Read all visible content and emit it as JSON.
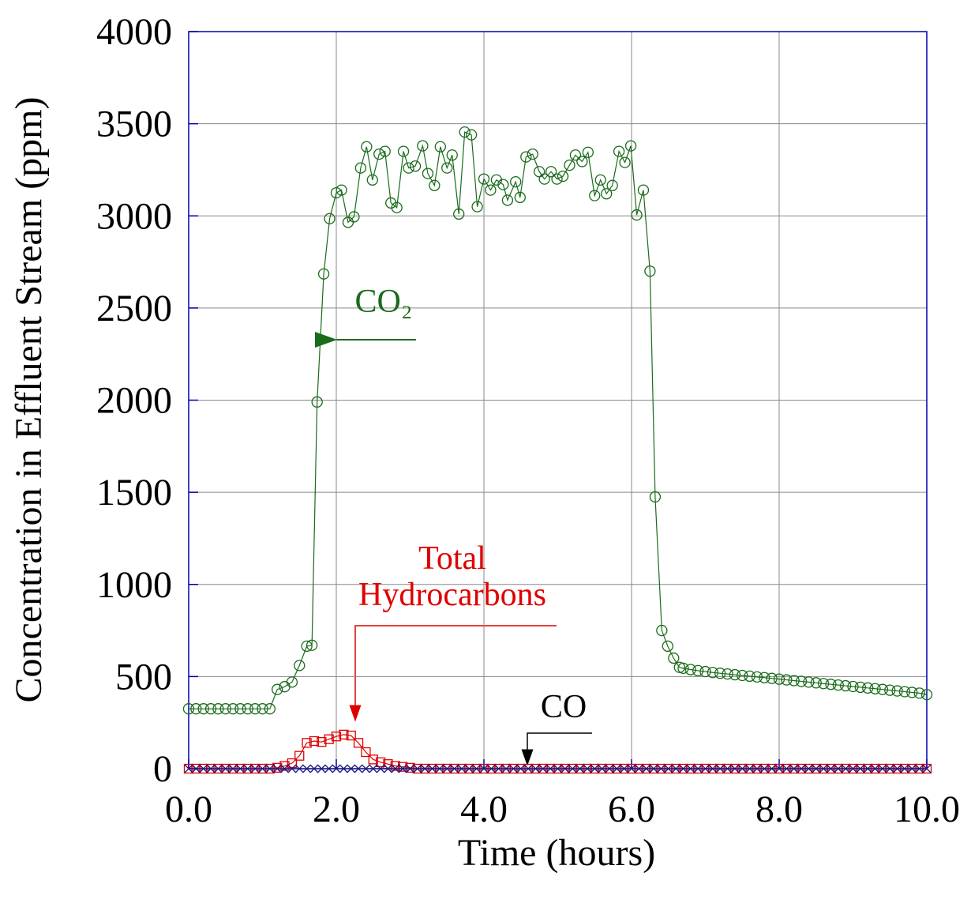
{
  "chart_data": {
    "type": "scatter",
    "x_label": "Time (hours)",
    "y_label": "Concentration in Effluent Stream (ppm)",
    "xlim": [
      0,
      10
    ],
    "ylim": [
      0,
      4000
    ],
    "xticks": [
      {
        "value": 0,
        "label": "0.0"
      },
      {
        "value": 2,
        "label": "2.0"
      },
      {
        "value": 4,
        "label": "4.0"
      },
      {
        "value": 6,
        "label": "6.0"
      },
      {
        "value": 8,
        "label": "8.0"
      },
      {
        "value": 10,
        "label": "10.0"
      }
    ],
    "yticks": [
      0,
      500,
      1000,
      1500,
      2000,
      2500,
      3000,
      3500,
      4000
    ],
    "grid": true,
    "annotations": [
      {
        "lines": [
          "CO₂"
        ],
        "color": "#1a6b1a"
      },
      {
        "lines": [
          "Total",
          "Hydrocarbons"
        ],
        "color": "#e00000"
      },
      {
        "lines": [
          "CO"
        ],
        "color": "#000000"
      }
    ],
    "series": [
      {
        "color": "#1a6b1a",
        "marker": "circle",
        "x": [
          0,
          0.1,
          0.2,
          0.3,
          0.4,
          0.5,
          0.6,
          0.7,
          0.8,
          0.9,
          1.0,
          1.1,
          1.2,
          1.3,
          1.4,
          1.5,
          1.6,
          1.67,
          1.74,
          1.83,
          1.91,
          2.0,
          2.07,
          2.16,
          2.24,
          2.33,
          2.41,
          2.49,
          2.58,
          2.66,
          2.74,
          2.82,
          2.91,
          2.98,
          3.07,
          3.17,
          3.24,
          3.33,
          3.41,
          3.5,
          3.57,
          3.66,
          3.74,
          3.83,
          3.91,
          4.0,
          4.09,
          4.17,
          4.26,
          4.32,
          4.43,
          4.49,
          4.57,
          4.66,
          4.75,
          4.82,
          4.91,
          4.99,
          5.07,
          5.16,
          5.24,
          5.33,
          5.41,
          5.5,
          5.58,
          5.66,
          5.74,
          5.83,
          5.91,
          5.99,
          6.07,
          6.16,
          6.25,
          6.32,
          6.41,
          6.49,
          6.57,
          6.65,
          6.7,
          6.8,
          6.9,
          7.0,
          7.1,
          7.2,
          7.3,
          7.4,
          7.5,
          7.6,
          7.7,
          7.8,
          7.9,
          8.0,
          8.1,
          8.2,
          8.3,
          8.4,
          8.5,
          8.6,
          8.7,
          8.8,
          8.9,
          9.0,
          9.1,
          9.2,
          9.3,
          9.4,
          9.5,
          9.6,
          9.7,
          9.8,
          9.9,
          10.0
        ],
        "values": [
          325,
          325,
          325,
          325,
          325,
          325,
          325,
          325,
          325,
          325,
          325,
          325,
          430,
          445,
          470,
          560,
          665,
          670,
          1990,
          2685,
          2985,
          3125,
          3140,
          2965,
          2995,
          3260,
          3375,
          3195,
          3335,
          3350,
          3070,
          3045,
          3350,
          3260,
          3270,
          3380,
          3230,
          3165,
          3375,
          3260,
          3330,
          3010,
          3455,
          3440,
          3050,
          3200,
          3140,
          3195,
          3170,
          3085,
          3185,
          3100,
          3320,
          3335,
          3240,
          3200,
          3240,
          3200,
          3215,
          3275,
          3330,
          3295,
          3345,
          3110,
          3195,
          3120,
          3165,
          3350,
          3290,
          3380,
          3005,
          3140,
          2700,
          1475,
          750,
          665,
          600,
          550,
          545,
          538,
          532,
          527,
          522,
          518,
          514,
          510,
          506,
          502,
          498,
          494,
          490,
          486,
          482,
          478,
          474,
          470,
          466,
          462,
          458,
          454,
          450,
          446,
          442,
          438,
          434,
          430,
          426,
          422,
          418,
          414,
          410,
          402
        ]
      },
      {
        "color": "#e00000",
        "marker": "square",
        "x": [
          0,
          0.1,
          0.2,
          0.3,
          0.4,
          0.5,
          0.6,
          0.7,
          0.8,
          0.9,
          1.0,
          1.1,
          1.2,
          1.3,
          1.4,
          1.5,
          1.6,
          1.7,
          1.8,
          1.9,
          2.0,
          2.1,
          2.2,
          2.3,
          2.4,
          2.5,
          2.6,
          2.7,
          2.8,
          2.9,
          3.0,
          3.1,
          3.2,
          3.3,
          3.4,
          3.5,
          3.6,
          3.7,
          3.8,
          3.9,
          4.0,
          4.1,
          4.2,
          4.3,
          4.4,
          4.5,
          4.6,
          4.7,
          4.8,
          4.9,
          5.0,
          5.1,
          5.2,
          5.3,
          5.4,
          5.5,
          5.6,
          5.7,
          5.8,
          5.9,
          6.0,
          6.1,
          6.2,
          6.3,
          6.4,
          6.5,
          6.6,
          6.7,
          6.8,
          6.9,
          7.0,
          7.1,
          7.2,
          7.3,
          7.4,
          7.5,
          7.6,
          7.7,
          7.8,
          7.9,
          8.0,
          8.1,
          8.2,
          8.3,
          8.4,
          8.5,
          8.6,
          8.7,
          8.8,
          8.9,
          9.0,
          9.1,
          9.2,
          9.3,
          9.4,
          9.5,
          9.6,
          9.7,
          9.8,
          9.9,
          10.0
        ],
        "values": [
          0,
          0,
          0,
          0,
          0,
          0,
          0,
          0,
          0,
          0,
          0,
          0,
          5,
          15,
          30,
          70,
          140,
          150,
          145,
          160,
          175,
          185,
          180,
          140,
          90,
          50,
          35,
          25,
          15,
          10,
          5,
          0,
          0,
          0,
          0,
          0,
          0,
          0,
          0,
          0,
          0,
          0,
          0,
          0,
          0,
          0,
          0,
          0,
          0,
          0,
          0,
          0,
          0,
          0,
          0,
          0,
          0,
          0,
          0,
          0,
          0,
          0,
          0,
          0,
          0,
          0,
          0,
          0,
          0,
          0,
          0,
          0,
          0,
          0,
          0,
          0,
          0,
          0,
          0,
          0,
          0,
          0,
          0,
          0,
          0,
          0,
          0,
          0,
          0,
          0,
          0,
          0,
          0,
          0,
          0,
          0,
          0,
          0,
          0,
          0,
          0
        ]
      },
      {
        "color": "#1a1a80",
        "marker": "cross",
        "x": [
          0,
          0.1,
          0.2,
          0.3,
          0.4,
          0.5,
          0.6,
          0.7,
          0.8,
          0.9,
          1.0,
          1.1,
          1.2,
          1.3,
          1.4,
          1.5,
          1.6,
          1.7,
          1.8,
          1.9,
          2.0,
          2.1,
          2.2,
          2.3,
          2.4,
          2.5,
          2.6,
          2.7,
          2.8,
          2.9,
          3.0,
          3.1,
          3.2,
          3.3,
          3.4,
          3.5,
          3.6,
          3.7,
          3.8,
          3.9,
          4.0,
          4.1,
          4.2,
          4.3,
          4.4,
          4.5,
          4.6,
          4.7,
          4.8,
          4.9,
          5.0,
          5.1,
          5.2,
          5.3,
          5.4,
          5.5,
          5.6,
          5.7,
          5.8,
          5.9,
          6.0,
          6.1,
          6.2,
          6.3,
          6.4,
          6.5,
          6.6,
          6.7,
          6.8,
          6.9,
          7.0,
          7.1,
          7.2,
          7.3,
          7.4,
          7.5,
          7.6,
          7.7,
          7.8,
          7.9,
          8.0,
          8.1,
          8.2,
          8.3,
          8.4,
          8.5,
          8.6,
          8.7,
          8.8,
          8.9,
          9.0,
          9.1,
          9.2,
          9.3,
          9.4,
          9.5,
          9.6,
          9.7,
          9.8,
          9.9,
          10.0
        ],
        "values": [
          0,
          0,
          0,
          0,
          0,
          0,
          0,
          0,
          0,
          0,
          0,
          0,
          0,
          0,
          0,
          0,
          0,
          0,
          0,
          0,
          0,
          0,
          0,
          0,
          0,
          0,
          0,
          0,
          0,
          0,
          0,
          0,
          0,
          0,
          0,
          0,
          0,
          0,
          0,
          0,
          0,
          0,
          0,
          0,
          0,
          0,
          0,
          0,
          0,
          0,
          0,
          0,
          0,
          0,
          0,
          0,
          0,
          0,
          0,
          0,
          0,
          0,
          0,
          0,
          0,
          0,
          0,
          0,
          0,
          0,
          0,
          0,
          0,
          0,
          0,
          0,
          0,
          0,
          0,
          0,
          0,
          0,
          0,
          0,
          0,
          0,
          0,
          0,
          0,
          0,
          0,
          0,
          0,
          0,
          0,
          0,
          0,
          0,
          0,
          0,
          0
        ]
      }
    ]
  }
}
